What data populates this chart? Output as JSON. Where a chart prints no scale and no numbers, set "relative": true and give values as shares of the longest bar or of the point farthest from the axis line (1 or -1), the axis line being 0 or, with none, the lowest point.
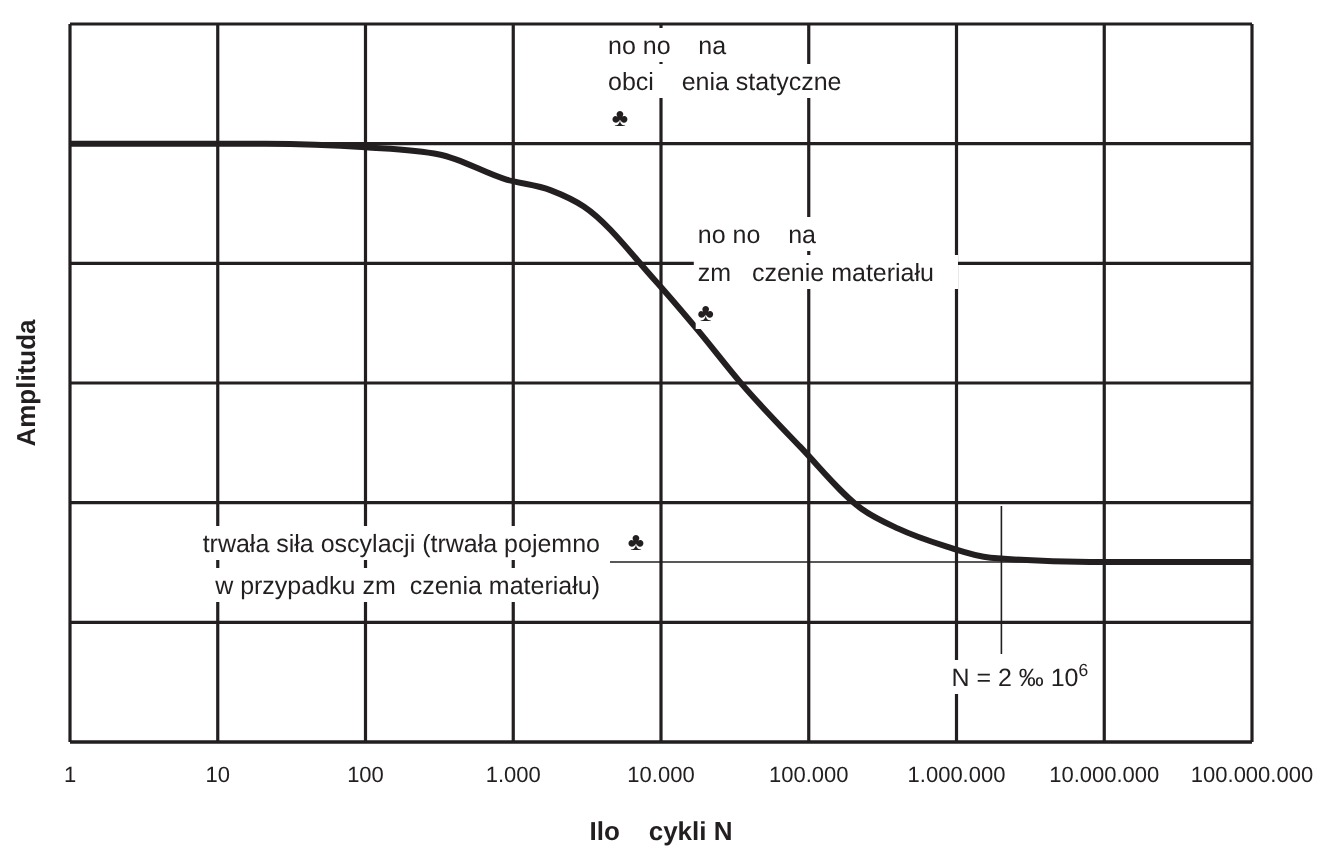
{
  "chart_data": {
    "type": "line",
    "xlabel": "Ilo    cykli N",
    "ylabel": "Amplituda",
    "relative": true,
    "log": "x",
    "grid": true,
    "marker": "none",
    "line_style": "solid",
    "xlim": [
      1,
      100000000
    ],
    "xticks": [
      1,
      10,
      100,
      {
        "value": 1000,
        "label": "1.000"
      },
      {
        "value": 10000,
        "label": "10.000"
      },
      {
        "value": 100000,
        "label": "100.000"
      },
      {
        "value": 1000000,
        "label": "1.000.000"
      },
      {
        "value": 10000000,
        "label": "10.000.000"
      },
      {
        "value": 100000000,
        "label": "100.000.000"
      }
    ],
    "x": [
      1,
      21,
      100,
      316,
      900,
      1800,
      3000,
      9000,
      17800,
      35000,
      87000,
      230000,
      400000,
      850000,
      1700000,
      8000000,
      100000000
    ],
    "series": [
      {
        "color": "#231f20",
        "values": [
          1,
          1,
          0.994,
          0.982,
          0.94,
          0.922,
          0.895,
          0.773,
          0.688,
          0.599,
          0.494,
          0.389,
          0.357,
          0.327,
          0.308,
          0.301,
          0.301
        ]
      }
    ],
    "annotations": [
      {
        "text": "no no    na\nobci    enia statyczne\n♣"
      },
      "no no    na\nzm   czenie materiału\n♣",
      "trwała siła oscylacji (trwała pojemno\nw przypadku zm  czenia materiału)\n♣",
      "N = 2 ‰ 10$^{6}$"
    ]
  }
}
